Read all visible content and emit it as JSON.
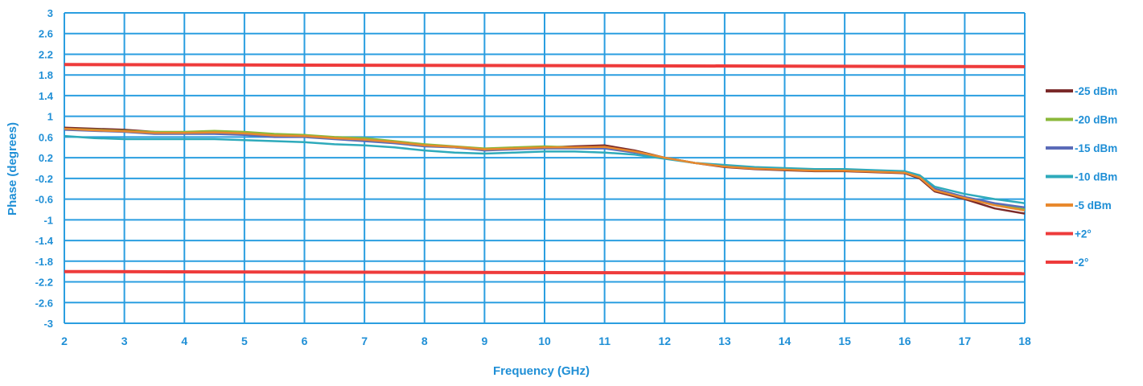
{
  "chart_data": {
    "type": "line",
    "title": "",
    "xlabel": "Frequency (GHz)",
    "ylabel": "Phase (degrees)",
    "xlim": [
      2,
      18
    ],
    "ylim": [
      -3,
      3
    ],
    "xticks": [
      "2",
      "3",
      "4",
      "5",
      "6",
      "7",
      "8",
      "9",
      "10",
      "11",
      "12",
      "13",
      "14",
      "15",
      "16",
      "17",
      "18"
    ],
    "yticks": [
      "3",
      "2.6",
      "2.2",
      "1.8",
      "1.4",
      "1",
      "0.6",
      "0.2",
      "-0.2",
      "-0.6",
      "-1",
      "-1.4",
      "-1.8",
      "-2.2",
      "-2.6",
      "-3"
    ],
    "grid": true,
    "legend_position": "right",
    "colors": {
      "axis_text": "#1f8fd6",
      "grid": "#2a9ee0"
    },
    "series": [
      {
        "name": "-25 dBm",
        "color": "#7b2a2a",
        "x": [
          2,
          2.5,
          3,
          3.5,
          4,
          4.5,
          5,
          5.5,
          6,
          6.5,
          7,
          7.5,
          8,
          8.5,
          9,
          9.5,
          10,
          10.5,
          11,
          11.5,
          12,
          12.5,
          13,
          13.5,
          14,
          14.5,
          15,
          15.5,
          16,
          16.25,
          16.5,
          17,
          17.5,
          18
        ],
        "y": [
          0.78,
          0.76,
          0.74,
          0.7,
          0.68,
          0.7,
          0.66,
          0.64,
          0.62,
          0.58,
          0.56,
          0.5,
          0.44,
          0.4,
          0.36,
          0.38,
          0.4,
          0.42,
          0.44,
          0.34,
          0.2,
          0.1,
          0.02,
          -0.02,
          -0.04,
          -0.06,
          -0.06,
          -0.08,
          -0.1,
          -0.2,
          -0.45,
          -0.6,
          -0.78,
          -0.88
        ]
      },
      {
        "name": "-20 dBm",
        "color": "#8bb83a",
        "x": [
          2,
          2.5,
          3,
          3.5,
          4,
          4.5,
          5,
          5.5,
          6,
          6.5,
          7,
          7.5,
          8,
          8.5,
          9,
          9.5,
          10,
          10.5,
          11,
          11.5,
          12,
          12.5,
          13,
          13.5,
          14,
          14.5,
          15,
          15.5,
          16,
          16.25,
          16.5,
          17,
          17.5,
          18
        ],
        "y": [
          0.76,
          0.74,
          0.72,
          0.7,
          0.7,
          0.72,
          0.7,
          0.66,
          0.64,
          0.6,
          0.58,
          0.52,
          0.46,
          0.42,
          0.38,
          0.4,
          0.42,
          0.4,
          0.4,
          0.32,
          0.2,
          0.1,
          0.04,
          0.0,
          -0.02,
          -0.04,
          -0.04,
          -0.06,
          -0.08,
          -0.18,
          -0.42,
          -0.58,
          -0.7,
          -0.8
        ]
      },
      {
        "name": "-15 dBm",
        "color": "#5b6bb8",
        "x": [
          2,
          2.5,
          3,
          3.5,
          4,
          4.5,
          5,
          5.5,
          6,
          6.5,
          7,
          7.5,
          8,
          8.5,
          9,
          9.5,
          10,
          10.5,
          11,
          11.5,
          12,
          12.5,
          13,
          13.5,
          14,
          14.5,
          15,
          15.5,
          16,
          16.25,
          16.5,
          17,
          17.5,
          18
        ],
        "y": [
          0.74,
          0.72,
          0.7,
          0.66,
          0.66,
          0.66,
          0.64,
          0.6,
          0.6,
          0.56,
          0.52,
          0.48,
          0.42,
          0.4,
          0.34,
          0.36,
          0.38,
          0.38,
          0.38,
          0.3,
          0.2,
          0.1,
          0.04,
          0.0,
          -0.02,
          -0.04,
          -0.04,
          -0.06,
          -0.08,
          -0.16,
          -0.4,
          -0.56,
          -0.68,
          -0.76
        ]
      },
      {
        "name": "-10 dBm",
        "color": "#2eaabb",
        "x": [
          2,
          2.5,
          3,
          3.5,
          4,
          4.5,
          5,
          5.5,
          6,
          6.5,
          7,
          7.5,
          8,
          8.5,
          9,
          9.5,
          10,
          10.5,
          11,
          11.5,
          12,
          12.5,
          13,
          13.5,
          14,
          14.5,
          15,
          15.5,
          16,
          16.25,
          16.5,
          17,
          17.5,
          18
        ],
        "y": [
          0.62,
          0.58,
          0.56,
          0.56,
          0.56,
          0.56,
          0.54,
          0.52,
          0.5,
          0.46,
          0.44,
          0.4,
          0.34,
          0.3,
          0.28,
          0.3,
          0.32,
          0.32,
          0.3,
          0.26,
          0.18,
          0.1,
          0.06,
          0.02,
          0.0,
          -0.02,
          -0.02,
          -0.04,
          -0.06,
          -0.14,
          -0.36,
          -0.5,
          -0.6,
          -0.68
        ]
      },
      {
        "name": "-5 dBm",
        "color": "#e8892e",
        "x": [
          2,
          2.5,
          3,
          3.5,
          4,
          4.5,
          5,
          5.5,
          6,
          6.5,
          7,
          7.5,
          8,
          8.5,
          9,
          9.5,
          10,
          10.5,
          11,
          11.5,
          12,
          12.5,
          13,
          13.5,
          14,
          14.5,
          15,
          15.5,
          16,
          16.25,
          16.5,
          17,
          17.5,
          18
        ],
        "y": [
          0.76,
          0.73,
          0.71,
          0.68,
          0.68,
          0.69,
          0.67,
          0.63,
          0.62,
          0.58,
          0.55,
          0.5,
          0.44,
          0.41,
          0.36,
          0.38,
          0.4,
          0.4,
          0.41,
          0.32,
          0.2,
          0.1,
          0.03,
          -0.01,
          -0.03,
          -0.05,
          -0.05,
          -0.07,
          -0.09,
          -0.18,
          -0.43,
          -0.58,
          -0.72,
          -0.82
        ]
      },
      {
        "name": "+2°",
        "color": "#ee3b3b",
        "x": [
          2,
          18
        ],
        "y": [
          2.0,
          1.96
        ]
      },
      {
        "name": "-2°",
        "color": "#ee3b3b",
        "x": [
          2,
          18
        ],
        "y": [
          -2.0,
          -2.04
        ]
      }
    ]
  }
}
